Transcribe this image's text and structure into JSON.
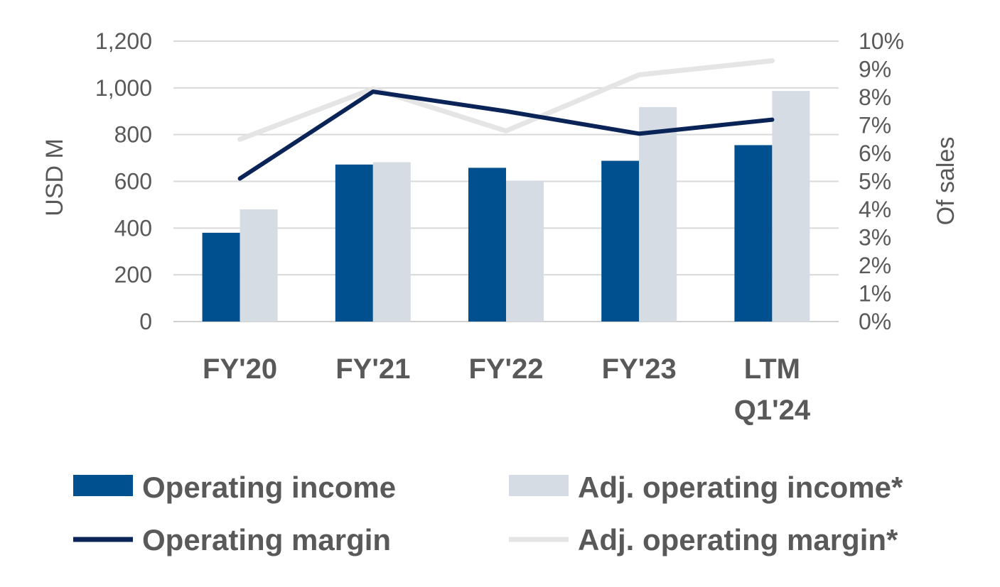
{
  "chart_data": {
    "type": "bar",
    "categories": [
      [
        "FY'20"
      ],
      [
        "FY'21"
      ],
      [
        "FY'22"
      ],
      [
        "FY'23"
      ],
      [
        "LTM",
        "Q1'24"
      ]
    ],
    "ylabel": "USD M",
    "y2label": "Of sales",
    "ylim": [
      0,
      1200
    ],
    "y2lim": [
      0,
      10
    ],
    "y_ticks": [
      "0",
      "200",
      "400",
      "600",
      "800",
      "1,000",
      "1,200"
    ],
    "y2_ticks": [
      "0%",
      "1%",
      "2%",
      "3%",
      "4%",
      "5%",
      "6%",
      "7%",
      "8%",
      "9%",
      "10%"
    ],
    "grid": true,
    "legend_position": "bottom",
    "bar_series": [
      {
        "name": "Operating income",
        "values": [
          380,
          672,
          658,
          688,
          755
        ],
        "color": "#00508F"
      },
      {
        "name": "Adj. operating income*",
        "values": [
          480,
          682,
          602,
          918,
          987
        ],
        "color": "#D6DCE4"
      }
    ],
    "line_series": [
      {
        "name": "Operating margin",
        "values": [
          5.1,
          8.2,
          7.5,
          6.7,
          7.2
        ],
        "color": "#0A2458",
        "axis": "right"
      },
      {
        "name": "Adj. operating margin*",
        "values": [
          6.5,
          8.3,
          6.8,
          8.8,
          9.3
        ],
        "color": "#E5E5E5",
        "axis": "right"
      }
    ]
  }
}
